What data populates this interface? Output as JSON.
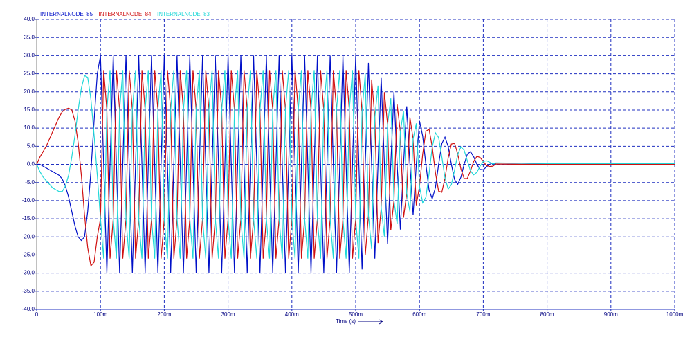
{
  "chart_data": {
    "type": "line",
    "x_label": "Time (s)",
    "x": [
      0,
      0.005,
      0.01,
      0.015,
      0.02,
      0.025,
      0.03,
      0.035,
      0.04,
      0.045,
      0.05,
      0.055,
      0.06,
      0.065,
      0.07,
      0.075,
      0.08,
      0.085,
      0.09,
      0.095,
      0.1,
      0.105,
      0.11,
      0.115,
      0.12,
      0.125,
      0.13,
      0.135,
      0.14,
      0.145,
      0.15,
      0.155,
      0.16,
      0.165,
      0.17,
      0.175,
      0.18,
      0.185,
      0.19,
      0.195,
      0.2,
      0.205,
      0.21,
      0.215,
      0.22,
      0.225,
      0.23,
      0.235,
      0.24,
      0.245,
      0.25,
      0.255,
      0.26,
      0.265,
      0.27,
      0.275,
      0.28,
      0.285,
      0.29,
      0.295,
      0.3,
      0.305,
      0.31,
      0.315,
      0.32,
      0.325,
      0.33,
      0.335,
      0.34,
      0.345,
      0.35,
      0.355,
      0.36,
      0.365,
      0.37,
      0.375,
      0.38,
      0.385,
      0.39,
      0.395,
      0.4,
      0.405,
      0.41,
      0.415,
      0.42,
      0.425,
      0.43,
      0.435,
      0.44,
      0.445,
      0.45,
      0.455,
      0.46,
      0.465,
      0.47,
      0.475,
      0.48,
      0.485,
      0.49,
      0.495,
      0.5,
      0.505,
      0.51,
      0.515,
      0.52,
      0.525,
      0.53,
      0.535,
      0.54,
      0.545,
      0.55,
      0.555,
      0.56,
      0.565,
      0.57,
      0.575,
      0.58,
      0.585,
      0.59,
      0.595,
      0.6,
      0.605,
      0.61,
      0.615,
      0.62,
      0.625,
      0.63,
      0.635,
      0.64,
      0.645,
      0.65,
      0.655,
      0.66,
      0.665,
      0.67,
      0.675,
      0.68,
      0.685,
      0.69,
      0.695,
      0.7,
      0.705,
      0.71,
      0.715,
      0.72,
      0.76,
      0.8,
      0.85,
      0.9,
      0.95,
      1
    ],
    "series": [
      {
        "name": "INTERNALNODE_85",
        "color": "#0010c8",
        "values": [
          0,
          0,
          -0.5,
          -1,
          -1.5,
          -2,
          -2.5,
          -3,
          -4,
          -6,
          -9,
          -13,
          -17,
          -20,
          -21,
          -20,
          -13,
          -2,
          12,
          25,
          30,
          0,
          -30,
          0,
          30,
          0,
          -30,
          0,
          30,
          0,
          -30,
          0,
          30,
          0,
          -30,
          0,
          30,
          0,
          -30,
          0,
          30,
          0,
          -30,
          0,
          30,
          0,
          -30,
          0,
          30,
          0,
          -30,
          0,
          30,
          0,
          -30,
          0,
          30,
          0,
          -30,
          0,
          30,
          0,
          -30,
          0,
          30,
          0,
          -30,
          0,
          30,
          0,
          -30,
          0,
          30,
          0,
          -30,
          0,
          30,
          0,
          -30,
          0,
          30,
          0,
          -30,
          0,
          30,
          0,
          -30,
          0,
          30,
          0,
          -30,
          0,
          30,
          0,
          -30,
          0,
          30,
          0,
          -30,
          0,
          30,
          0,
          -29,
          0,
          28,
          0,
          -26,
          0,
          24,
          0,
          -22,
          0,
          20,
          0,
          -18,
          0,
          16,
          0,
          -14,
          0,
          12,
          7.8,
          0,
          -7.1,
          -9.5,
          -6.4,
          0,
          5.7,
          7.5,
          4.9,
          0,
          -4.2,
          -5.5,
          -3.5,
          0,
          2.8,
          3.5,
          2.1,
          0,
          -1.4,
          -1.5,
          -0.7,
          0,
          0.4,
          0.1,
          0,
          0.1,
          0,
          0,
          0.1,
          0
        ]
      },
      {
        "name": "_INTERNALNODE_84",
        "color": "#d01010",
        "values": [
          0,
          2,
          3.5,
          5,
          7,
          9,
          11,
          13,
          14.5,
          15.2,
          15.5,
          15,
          12,
          6,
          -3,
          -14,
          -23,
          -28,
          -27,
          -20,
          -15,
          26,
          15,
          -26,
          -15,
          26,
          15,
          -26,
          -15,
          26,
          15,
          -26,
          -15,
          26,
          15,
          -26,
          -15,
          26,
          15,
          -26,
          -15,
          26,
          15,
          -26,
          -15,
          26,
          15,
          -26,
          -15,
          26,
          15,
          -26,
          -15,
          26,
          15,
          -26,
          -15,
          26,
          15,
          -26,
          -15,
          26,
          15,
          -26,
          -15,
          26,
          15,
          -26,
          -15,
          26,
          15,
          -26,
          -15,
          26,
          15,
          -26,
          -15,
          26,
          15,
          -26,
          -15,
          26,
          15,
          -26,
          -15,
          26,
          15,
          -26,
          -15,
          26,
          15,
          -26,
          -15,
          26,
          15,
          -26,
          -15,
          26,
          15,
          -26,
          -15,
          26,
          14.5,
          -25.1,
          -14,
          23.4,
          13,
          -21.7,
          -12,
          19.9,
          11,
          -18.2,
          -10,
          16.5,
          9,
          -14.7,
          -8,
          13,
          7,
          -11.3,
          -6,
          2.8,
          9.1,
          9.7,
          4.8,
          -2.3,
          -7.4,
          -7.7,
          -3.8,
          1.8,
          5.6,
          5.8,
          2.8,
          -1.3,
          -3.9,
          -3.9,
          -1.8,
          0.8,
          2.2,
          1.9,
          0.8,
          -0.3,
          -0.6,
          -0.5,
          0.1,
          0,
          0,
          0,
          0,
          0,
          0
        ]
      },
      {
        "name": "_INTERNALNODE_83",
        "color": "#20d8d8",
        "values": [
          0,
          -2,
          -3.5,
          -4.5,
          -5.5,
          -6.5,
          -7,
          -7.5,
          -7.5,
          -6,
          -3,
          2,
          8,
          15,
          21,
          24.5,
          24,
          18,
          8,
          -3,
          -15,
          -26,
          15,
          26,
          -15,
          -26,
          15,
          26,
          -15,
          -26,
          15,
          26,
          -15,
          -26,
          15,
          26,
          -15,
          -26,
          15,
          26,
          -15,
          -26,
          15,
          26,
          -15,
          -26,
          15,
          26,
          -15,
          -26,
          15,
          26,
          -15,
          -26,
          15,
          26,
          -15,
          -26,
          15,
          26,
          -15,
          -26,
          15,
          26,
          -15,
          -26,
          15,
          26,
          -15,
          -26,
          15,
          26,
          -15,
          -26,
          15,
          26,
          -15,
          -26,
          15,
          26,
          -15,
          -26,
          15,
          26,
          -15,
          -26,
          15,
          26,
          -15,
          -26,
          15,
          26,
          -15,
          -26,
          15,
          26,
          -15,
          -26,
          15,
          26,
          -15,
          -26,
          14.5,
          25.1,
          -14,
          -23.4,
          13,
          21.7,
          -12,
          -19.9,
          11,
          18.2,
          -10,
          -16.5,
          9,
          14.7,
          -8,
          -13,
          7,
          11.3,
          -6,
          -10.6,
          -9.1,
          -2.6,
          4.8,
          8.7,
          7.4,
          2.1,
          -3.8,
          -6.8,
          -5.6,
          -1.6,
          2.8,
          4.8,
          3.9,
          1,
          -1.8,
          -2.9,
          -2.2,
          -0.5,
          0.8,
          1,
          0.6,
          0.1,
          0.4,
          0.3,
          0.2,
          0.2,
          0.2,
          0.2,
          0.2
        ]
      }
    ],
    "xlim": [
      0,
      1
    ],
    "ylim": [
      -40,
      40
    ],
    "xticks": [
      0,
      {
        "value": 0.1,
        "label": "100m"
      },
      {
        "value": 0.2,
        "label": "200m"
      },
      {
        "value": 0.3,
        "label": "300m"
      },
      {
        "value": 0.4,
        "label": "400m"
      },
      {
        "value": 0.5,
        "label": "500m"
      },
      {
        "value": 0.6,
        "label": "600m"
      },
      {
        "value": 0.7,
        "label": "700m"
      },
      {
        "value": 0.8,
        "label": "800m"
      },
      {
        "value": 0.9,
        "label": "900m"
      },
      {
        "value": 1,
        "label": "1000m"
      }
    ],
    "yticks": [
      {
        "value": -40,
        "label": "-40.0"
      },
      {
        "value": -35,
        "label": "-35.0"
      },
      {
        "value": -30,
        "label": "-30.0"
      },
      {
        "value": -25,
        "label": "-25.0"
      },
      {
        "value": -20,
        "label": "-20.0"
      },
      {
        "value": -15,
        "label": "-15.0"
      },
      {
        "value": -10,
        "label": "-10.0"
      },
      {
        "value": -5,
        "label": "-5.0"
      },
      {
        "value": 0,
        "label": "0.0"
      },
      {
        "value": 5,
        "label": "5.0"
      },
      {
        "value": 10,
        "label": "10.0"
      },
      {
        "value": 15,
        "label": "15.0"
      },
      {
        "value": 20,
        "label": "20.0"
      },
      {
        "value": 25,
        "label": "25.0"
      },
      {
        "value": 30,
        "label": "30.0"
      },
      {
        "value": 35,
        "label": "35.0"
      },
      {
        "value": 40,
        "label": "40.0"
      }
    ],
    "grid": true
  }
}
